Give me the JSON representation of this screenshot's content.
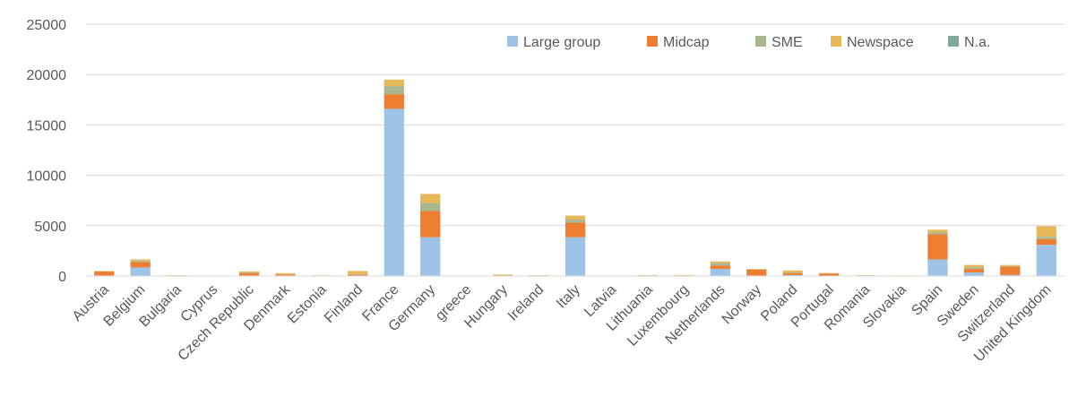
{
  "chart_data": {
    "type": "bar",
    "stacked": true,
    "title": "",
    "xlabel": "",
    "ylabel": "",
    "ylim": [
      0,
      25000
    ],
    "yticks": [
      "0",
      "5000",
      "10000",
      "15000",
      "20000",
      "25000"
    ],
    "grid": true,
    "legend_position": "top-right",
    "categories": [
      "Austria",
      "Belgium",
      "Bulgaria",
      "Cyprus",
      "Czech Republic",
      "Denmark",
      "Estonia",
      "Finland",
      "France",
      "Germany",
      "greece",
      "Hungary",
      "Ireland",
      "Italy",
      "Latvia",
      "Lithuania",
      "Luxembourg",
      "Netherlands",
      "Norway",
      "Poland",
      "Portugal",
      "Romania",
      "Slovakia",
      "Spain",
      "Sweden",
      "Switzerland",
      "United Kingdom"
    ],
    "series": [
      {
        "name": "Large group",
        "color": "#9dc3e6",
        "values": [
          50,
          850,
          20,
          0,
          50,
          0,
          0,
          50,
          16600,
          3850,
          0,
          20,
          20,
          3850,
          0,
          0,
          0,
          700,
          50,
          100,
          0,
          0,
          0,
          1650,
          350,
          100,
          3100
        ]
      },
      {
        "name": "Midcap",
        "color": "#ed7d31",
        "values": [
          400,
          550,
          30,
          10,
          250,
          150,
          30,
          100,
          1450,
          2600,
          10,
          50,
          30,
          1450,
          10,
          50,
          50,
          350,
          600,
          200,
          250,
          60,
          20,
          2500,
          350,
          850,
          550
        ]
      },
      {
        "name": "SME",
        "color": "#a9b78f",
        "values": [
          20,
          100,
          20,
          10,
          50,
          40,
          20,
          50,
          800,
          800,
          10,
          30,
          20,
          300,
          10,
          20,
          20,
          250,
          20,
          50,
          20,
          20,
          20,
          200,
          150,
          50,
          250
        ]
      },
      {
        "name": "Newspace",
        "color": "#e6b85a",
        "values": [
          30,
          150,
          20,
          10,
          100,
          100,
          20,
          300,
          650,
          900,
          10,
          50,
          20,
          400,
          10,
          30,
          30,
          150,
          30,
          200,
          30,
          20,
          20,
          250,
          250,
          100,
          1050
        ]
      },
      {
        "name": "N.a.",
        "color": "#7fa89a",
        "values": [
          0,
          0,
          0,
          0,
          0,
          0,
          0,
          0,
          0,
          0,
          0,
          0,
          0,
          0,
          0,
          0,
          0,
          0,
          0,
          0,
          0,
          0,
          0,
          0,
          0,
          0,
          0
        ]
      }
    ]
  }
}
